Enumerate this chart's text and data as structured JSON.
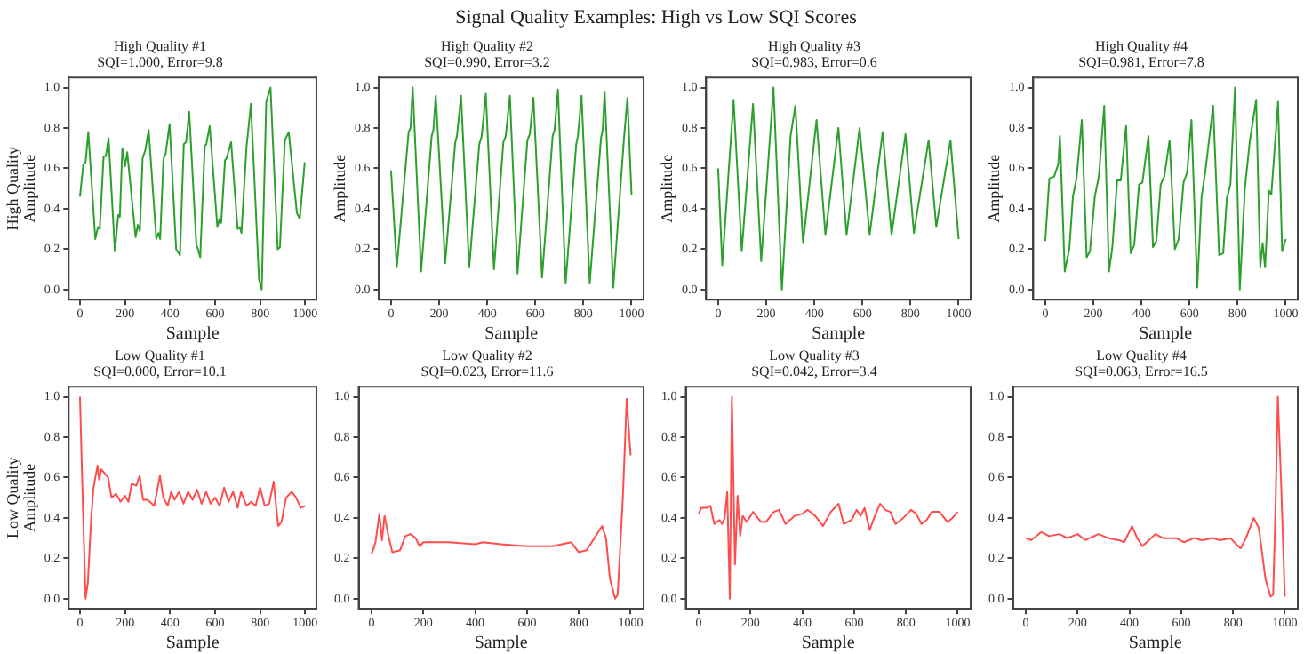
{
  "chart_data": [
    {
      "type": "other",
      "title": "Signal Quality Examples: High vs Low SQI Scores"
    },
    {
      "type": "line",
      "title": "High Quality #1",
      "subtitle": "SQI=1.000, Error=9.8",
      "xlabel": "Sample",
      "ylabel": "High Quality\nAmplitude",
      "xlim": [
        -50,
        1050
      ],
      "xticks": [
        0,
        200,
        400,
        600,
        800,
        1000
      ],
      "ylim": [
        -0.05,
        1.05
      ],
      "yticks": [
        {
          "value": 0,
          "label": "0.0"
        },
        {
          "value": 0.2,
          "label": "0.2"
        },
        {
          "value": 0.4,
          "label": "0.4"
        },
        {
          "value": 0.6,
          "label": "0.6"
        },
        {
          "value": 0.8,
          "label": "0.8"
        },
        {
          "value": 1,
          "label": "1.0"
        }
      ],
      "grid": false,
      "legend": false,
      "series": [
        {
          "color": "#2ca02c",
          "x": [
            0,
            15,
            25,
            37,
            68,
            80,
            88,
            105,
            115,
            127,
            155,
            170,
            177,
            188,
            200,
            210,
            247,
            257,
            266,
            278,
            290,
            305,
            339,
            349,
            356,
            371,
            380,
            398,
            427,
            444,
            461,
            471,
            485,
            517,
            524,
            534,
            554,
            561,
            576,
            610,
            620,
            627,
            644,
            651,
            671,
            700,
            710,
            717,
            739,
            759,
            795,
            807,
            827,
            846,
            878,
            888,
            910,
            927,
            963,
            976,
            998
          ],
          "values": [
            0.46,
            0.62,
            0.63,
            0.78,
            0.25,
            0.31,
            0.3,
            0.66,
            0.66,
            0.75,
            0.19,
            0.37,
            0.36,
            0.7,
            0.61,
            0.68,
            0.26,
            0.32,
            0.29,
            0.65,
            0.69,
            0.79,
            0.25,
            0.28,
            0.25,
            0.65,
            0.67,
            0.82,
            0.2,
            0.17,
            0.72,
            0.73,
            0.88,
            0.22,
            0.2,
            0.16,
            0.71,
            0.72,
            0.81,
            0.31,
            0.35,
            0.33,
            0.64,
            0.65,
            0.73,
            0.3,
            0.31,
            0.28,
            0.7,
            0.92,
            0.05,
            0.0,
            0.93,
            1.0,
            0.2,
            0.21,
            0.74,
            0.78,
            0.38,
            0.35,
            0.63
          ]
        }
      ]
    },
    {
      "type": "line",
      "title": "High Quality #2",
      "subtitle": "SQI=0.990, Error=3.2",
      "xlabel": "Sample",
      "ylabel": "Amplitude",
      "xlim": [
        -50,
        1050
      ],
      "xticks": [
        0,
        200,
        400,
        600,
        800,
        1000
      ],
      "ylim": [
        -0.05,
        1.05
      ],
      "yticks": [
        {
          "value": 0,
          "label": "0.0"
        },
        {
          "value": 0.2,
          "label": "0.2"
        },
        {
          "value": 0.4,
          "label": "0.4"
        },
        {
          "value": 0.6,
          "label": "0.6"
        },
        {
          "value": 0.8,
          "label": "0.8"
        },
        {
          "value": 1,
          "label": "1.0"
        }
      ],
      "grid": false,
      "legend": false,
      "series": [
        {
          "color": "#2ca02c",
          "x": [
            0,
            24,
            73,
            81,
            90,
            125,
            169,
            176,
            186,
            225,
            267,
            274,
            291,
            325,
            367,
            377,
            394,
            428,
            467,
            477,
            494,
            526,
            567,
            577,
            592,
            628,
            672,
            680,
            694,
            726,
            770,
            777,
            792,
            826,
            873,
            880,
            888,
            924,
            968,
            983,
            1000
          ],
          "values": [
            0.59,
            0.11,
            0.78,
            0.8,
            1.0,
            0.09,
            0.76,
            0.79,
            0.96,
            0.13,
            0.73,
            0.76,
            0.96,
            0.11,
            0.72,
            0.76,
            0.97,
            0.1,
            0.73,
            0.76,
            0.96,
            0.08,
            0.74,
            0.77,
            0.95,
            0.06,
            0.76,
            0.79,
            0.99,
            0.03,
            0.72,
            0.76,
            0.96,
            0.03,
            0.75,
            0.79,
            0.98,
            0.01,
            0.74,
            0.95,
            0.47
          ]
        }
      ]
    },
    {
      "type": "line",
      "title": "High Quality #3",
      "subtitle": "SQI=0.983, Error=0.6",
      "xlabel": "Sample",
      "ylabel": "Amplitude",
      "xlim": [
        -50,
        1050
      ],
      "xticks": [
        0,
        200,
        400,
        600,
        800,
        1000
      ],
      "ylim": [
        -0.05,
        1.05
      ],
      "yticks": [
        {
          "value": 0,
          "label": "0.0"
        },
        {
          "value": 0.2,
          "label": "0.2"
        },
        {
          "value": 0.4,
          "label": "0.4"
        },
        {
          "value": 0.6,
          "label": "0.6"
        },
        {
          "value": 0.8,
          "label": "0.8"
        },
        {
          "value": 1,
          "label": "1.0"
        }
      ],
      "grid": false,
      "legend": false,
      "series": [
        {
          "color": "#2ca02c",
          "x": [
            0,
            17,
            64,
            98,
            145,
            179,
            230,
            265,
            301,
            321,
            353,
            409,
            446,
            500,
            534,
            588,
            630,
            684,
            721,
            779,
            814,
            875,
            907,
            966,
            1000
          ],
          "values": [
            0.6,
            0.12,
            0.94,
            0.19,
            0.92,
            0.14,
            1.0,
            0.0,
            0.76,
            0.91,
            0.23,
            0.84,
            0.27,
            0.8,
            0.27,
            0.8,
            0.27,
            0.78,
            0.27,
            0.77,
            0.28,
            0.74,
            0.31,
            0.74,
            0.25
          ]
        }
      ]
    },
    {
      "type": "line",
      "title": "High Quality #4",
      "subtitle": "SQI=0.981, Error=7.8",
      "xlabel": "Sample",
      "ylabel": "Amplitude",
      "xlim": [
        -50,
        1050
      ],
      "xticks": [
        0,
        200,
        400,
        600,
        800,
        1000
      ],
      "ylim": [
        -0.05,
        1.05
      ],
      "yticks": [
        {
          "value": 0,
          "label": "0.0"
        },
        {
          "value": 0.2,
          "label": "0.2"
        },
        {
          "value": 0.4,
          "label": "0.4"
        },
        {
          "value": 0.6,
          "label": "0.6"
        },
        {
          "value": 0.8,
          "label": "0.8"
        },
        {
          "value": 1,
          "label": "1.0"
        }
      ],
      "grid": false,
      "legend": false,
      "series": [
        {
          "color": "#2ca02c",
          "x": [
            0,
            17,
            37,
            54,
            61,
            81,
            100,
            115,
            130,
            152,
            172,
            186,
            206,
            223,
            245,
            265,
            279,
            299,
            314,
            336,
            355,
            370,
            390,
            404,
            429,
            448,
            462,
            480,
            495,
            517,
            539,
            555,
            575,
            590,
            608,
            632,
            650,
            665,
            698,
            723,
            740,
            755,
            770,
            789,
            809,
            830,
            850,
            877,
            894,
            904,
            914,
            930,
            940,
            968,
            985,
            1000
          ],
          "values": [
            0.24,
            0.55,
            0.56,
            0.62,
            0.76,
            0.09,
            0.2,
            0.46,
            0.55,
            0.84,
            0.16,
            0.19,
            0.46,
            0.56,
            0.91,
            0.09,
            0.21,
            0.54,
            0.54,
            0.81,
            0.18,
            0.22,
            0.52,
            0.53,
            0.76,
            0.21,
            0.24,
            0.52,
            0.56,
            0.74,
            0.2,
            0.25,
            0.53,
            0.58,
            0.84,
            0.01,
            0.46,
            0.58,
            0.91,
            0.17,
            0.18,
            0.45,
            0.52,
            1.0,
            0.0,
            0.5,
            0.73,
            0.94,
            0.11,
            0.23,
            0.11,
            0.49,
            0.47,
            0.93,
            0.19,
            0.25
          ]
        }
      ]
    },
    {
      "type": "line",
      "title": "Low Quality #1",
      "subtitle": "SQI=0.000, Error=10.1",
      "xlabel": "Sample",
      "ylabel": "Low Quality\nAmplitude",
      "xlim": [
        -50,
        1050
      ],
      "xticks": [
        0,
        200,
        400,
        600,
        800,
        1000
      ],
      "ylim": [
        -0.05,
        1.05
      ],
      "yticks": [
        {
          "value": 0,
          "label": "0.0"
        },
        {
          "value": 0.2,
          "label": "0.2"
        },
        {
          "value": 0.4,
          "label": "0.4"
        },
        {
          "value": 0.6,
          "label": "0.6"
        },
        {
          "value": 0.8,
          "label": "0.8"
        },
        {
          "value": 1,
          "label": "1.0"
        }
      ],
      "grid": false,
      "legend": false,
      "series": [
        {
          "color": "#ff4d4d",
          "x": [
            0,
            12,
            25,
            35,
            50,
            60,
            78,
            85,
            95,
            110,
            125,
            140,
            160,
            180,
            200,
            215,
            230,
            250,
            265,
            280,
            300,
            330,
            355,
            370,
            390,
            405,
            420,
            440,
            460,
            480,
            500,
            520,
            540,
            560,
            580,
            600,
            620,
            640,
            660,
            680,
            700,
            715,
            740,
            760,
            780,
            800,
            820,
            840,
            860,
            880,
            895,
            915,
            940,
            960,
            980,
            1000
          ],
          "values": [
            1.0,
            0.5,
            0.0,
            0.08,
            0.4,
            0.55,
            0.66,
            0.59,
            0.64,
            0.62,
            0.6,
            0.5,
            0.52,
            0.48,
            0.51,
            0.48,
            0.57,
            0.56,
            0.61,
            0.49,
            0.49,
            0.46,
            0.61,
            0.5,
            0.46,
            0.53,
            0.49,
            0.53,
            0.47,
            0.53,
            0.49,
            0.54,
            0.47,
            0.53,
            0.47,
            0.5,
            0.46,
            0.55,
            0.48,
            0.53,
            0.45,
            0.53,
            0.46,
            0.48,
            0.46,
            0.55,
            0.46,
            0.47,
            0.58,
            0.36,
            0.38,
            0.5,
            0.53,
            0.5,
            0.45,
            0.46
          ]
        }
      ]
    },
    {
      "type": "line",
      "title": "Low Quality #2",
      "subtitle": "SQI=0.023, Error=11.6",
      "xlabel": "Sample",
      "xlim": [
        -50,
        1050
      ],
      "xticks": [
        0,
        200,
        400,
        600,
        800,
        1000
      ],
      "ylim": [
        -0.05,
        1.05
      ],
      "yticks": [
        {
          "value": 0,
          "label": "0.0"
        },
        {
          "value": 0.2,
          "label": "0.2"
        },
        {
          "value": 0.4,
          "label": "0.4"
        },
        {
          "value": 0.6,
          "label": "0.6"
        },
        {
          "value": 0.8,
          "label": "0.8"
        },
        {
          "value": 1,
          "label": "1.0"
        }
      ],
      "grid": false,
      "legend": false,
      "series": [
        {
          "color": "#ff4d4d",
          "x": [
            0,
            15,
            30,
            40,
            50,
            65,
            80,
            110,
            130,
            150,
            170,
            185,
            200,
            300,
            400,
            430,
            500,
            600,
            700,
            770,
            800,
            830,
            860,
            890,
            905,
            920,
            940,
            950,
            970,
            985,
            1000
          ],
          "values": [
            0.22,
            0.28,
            0.42,
            0.29,
            0.41,
            0.31,
            0.23,
            0.24,
            0.31,
            0.32,
            0.3,
            0.26,
            0.28,
            0.28,
            0.27,
            0.28,
            0.27,
            0.26,
            0.26,
            0.28,
            0.23,
            0.24,
            0.3,
            0.36,
            0.3,
            0.1,
            0.0,
            0.02,
            0.5,
            0.99,
            0.71
          ]
        }
      ]
    },
    {
      "type": "line",
      "title": "Low Quality #3",
      "subtitle": "SQI=0.042, Error=3.4",
      "xlabel": "Sample",
      "xlim": [
        -50,
        1050
      ],
      "xticks": [
        0,
        200,
        400,
        600,
        800,
        1000
      ],
      "ylim": [
        -0.05,
        1.05
      ],
      "yticks": [
        {
          "value": 0,
          "label": "0.0"
        },
        {
          "value": 0.2,
          "label": "0.2"
        },
        {
          "value": 0.4,
          "label": "0.4"
        },
        {
          "value": 0.6,
          "label": "0.6"
        },
        {
          "value": 0.8,
          "label": "0.8"
        },
        {
          "value": 1,
          "label": "1.0"
        }
      ],
      "grid": false,
      "legend": false,
      "series": [
        {
          "color": "#ff4d4d",
          "x": [
            0,
            10,
            30,
            45,
            60,
            80,
            90,
            100,
            110,
            120,
            128,
            140,
            150,
            160,
            170,
            185,
            210,
            240,
            260,
            290,
            310,
            335,
            370,
            400,
            420,
            450,
            480,
            510,
            540,
            560,
            590,
            610,
            625,
            640,
            660,
            680,
            700,
            720,
            740,
            760,
            790,
            820,
            840,
            860,
            880,
            900,
            930,
            960,
            980,
            1000
          ],
          "values": [
            0.42,
            0.45,
            0.45,
            0.46,
            0.37,
            0.39,
            0.37,
            0.4,
            0.53,
            0.0,
            1.0,
            0.17,
            0.51,
            0.31,
            0.41,
            0.38,
            0.43,
            0.38,
            0.38,
            0.43,
            0.44,
            0.37,
            0.41,
            0.42,
            0.44,
            0.41,
            0.36,
            0.43,
            0.47,
            0.37,
            0.39,
            0.44,
            0.41,
            0.45,
            0.34,
            0.41,
            0.47,
            0.44,
            0.43,
            0.37,
            0.4,
            0.44,
            0.42,
            0.37,
            0.39,
            0.43,
            0.43,
            0.38,
            0.4,
            0.43
          ]
        }
      ]
    },
    {
      "type": "line",
      "title": "Low Quality #4",
      "subtitle": "SQI=0.063, Error=16.5",
      "xlabel": "Sample",
      "xlim": [
        -50,
        1050
      ],
      "xticks": [
        0,
        200,
        400,
        600,
        800,
        1000
      ],
      "ylim": [
        -0.05,
        1.05
      ],
      "yticks": [
        {
          "value": 0,
          "label": "0.0"
        },
        {
          "value": 0.2,
          "label": "0.2"
        },
        {
          "value": 0.4,
          "label": "0.4"
        },
        {
          "value": 0.6,
          "label": "0.6"
        },
        {
          "value": 0.8,
          "label": "0.8"
        },
        {
          "value": 1,
          "label": "1.0"
        }
      ],
      "grid": false,
      "legend": false,
      "series": [
        {
          "color": "#ff4d4d",
          "x": [
            0,
            20,
            60,
            90,
            130,
            160,
            200,
            230,
            280,
            320,
            360,
            380,
            410,
            430,
            450,
            500,
            530,
            580,
            610,
            650,
            680,
            720,
            750,
            790,
            820,
            830,
            850,
            880,
            900,
            925,
            945,
            955,
            965,
            973,
            985,
            1000
          ],
          "values": [
            0.3,
            0.29,
            0.33,
            0.31,
            0.32,
            0.3,
            0.32,
            0.29,
            0.32,
            0.3,
            0.29,
            0.28,
            0.36,
            0.3,
            0.26,
            0.32,
            0.3,
            0.3,
            0.28,
            0.3,
            0.29,
            0.3,
            0.29,
            0.3,
            0.26,
            0.25,
            0.3,
            0.4,
            0.35,
            0.1,
            0.01,
            0.02,
            0.5,
            1.0,
            0.6,
            0.01
          ]
        }
      ]
    }
  ]
}
